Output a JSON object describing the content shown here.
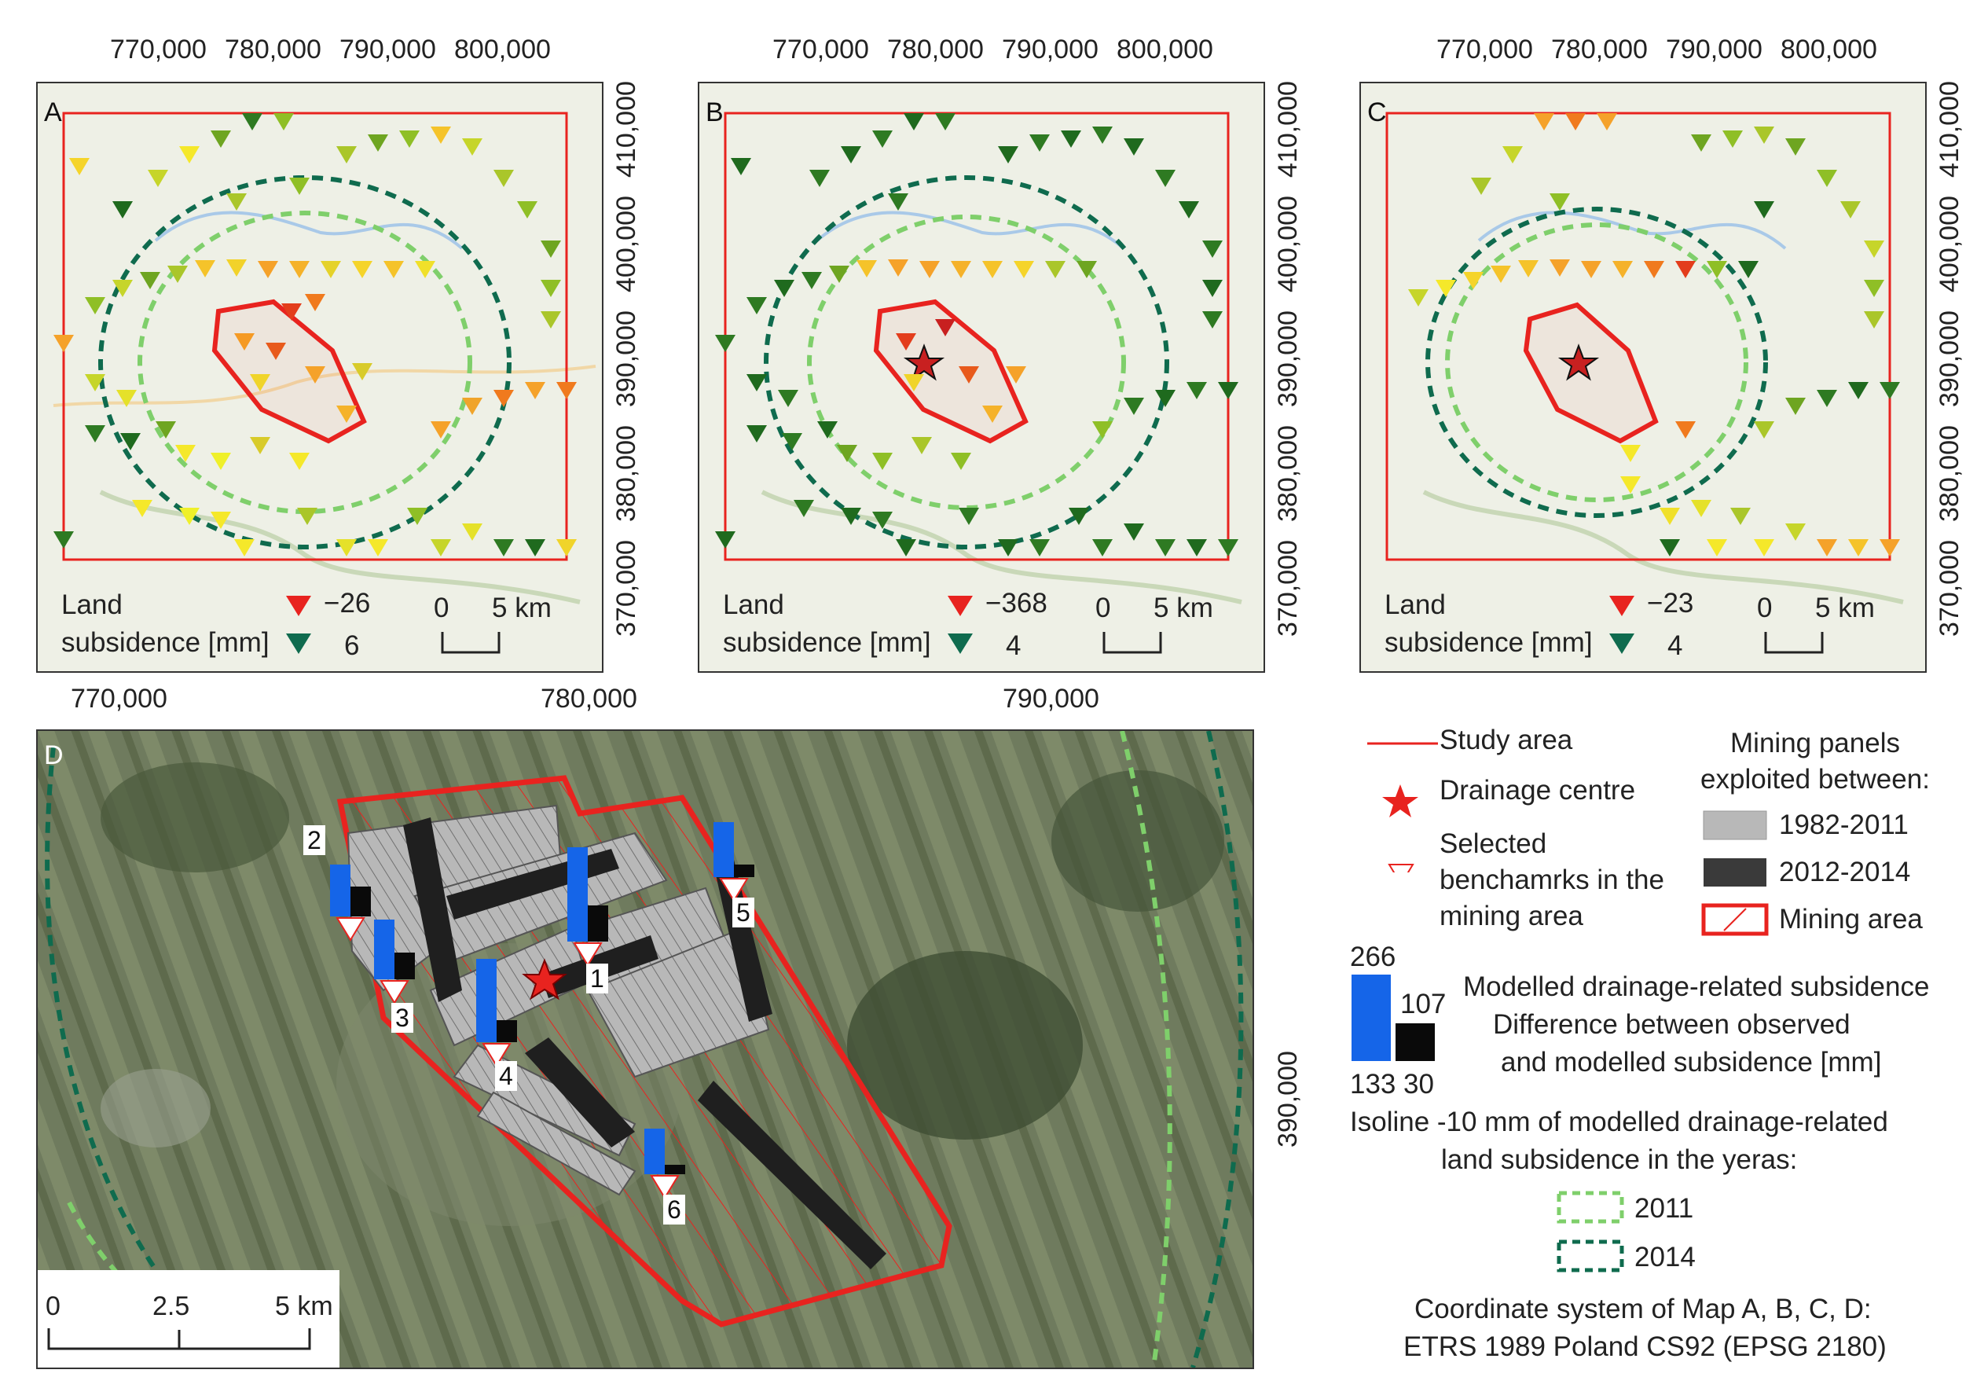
{
  "top_maps": {
    "x_ticks": [
      "770,000",
      "780,000",
      "790,000",
      "800,000"
    ],
    "y_ticks": [
      "410,000",
      "400,000",
      "390,000",
      "380,000",
      "370,000"
    ],
    "panels": [
      {
        "label": "A",
        "legend_title_1": "Land",
        "legend_title_2": "subsidence [mm]",
        "min_value": "−26",
        "max_value": "6",
        "scale_0": "0",
        "scale_5": "5 km"
      },
      {
        "label": "B",
        "legend_title_1": "Land",
        "legend_title_2": "subsidence [mm]",
        "min_value": "−368",
        "max_value": "4",
        "scale_0": "0",
        "scale_5": "5 km"
      },
      {
        "label": "C",
        "legend_title_1": "Land",
        "legend_title_2": "subsidence [mm]",
        "min_value": "−23",
        "max_value": "4",
        "scale_0": "0",
        "scale_5": "5 km"
      }
    ]
  },
  "map_d": {
    "label": "D",
    "x_ticks": [
      "770,000",
      "780,000",
      "790,000"
    ],
    "y_tick": "390,000",
    "benchmarks": [
      "1",
      "2",
      "3",
      "4",
      "5",
      "6"
    ],
    "scale": {
      "t0": "0",
      "t1": "2.5",
      "t2": "5 km"
    }
  },
  "legend": {
    "study_area": "Study area",
    "drainage_centre": "Drainage centre",
    "selected_1": "Selected",
    "selected_2": "benchamrks in the",
    "selected_3": "mining area",
    "panels_title_1": "Mining panels",
    "panels_title_2": "exploited between:",
    "period_1": "1982-2011",
    "period_2": "2012-2014",
    "mining_area": "Mining area",
    "bar_blue_max": "266",
    "bar_blue_min": "133",
    "bar_black_max": "107",
    "bar_black_min": "30",
    "modelled_1": "Modelled drainage-related subsidence",
    "modelled_2": "Difference between observed",
    "modelled_3": "and modelled subsidence [mm]",
    "isoline_1": "Isoline -10 mm of modelled drainage-related",
    "isoline_2": "land subsidence in the yeras:",
    "year_1": "2011",
    "year_2": "2014",
    "crs_1": "Coordinate system of Map A, B, C, D:",
    "crs_2": "ETRS 1989 Poland CS92 (EPSG 2180)"
  },
  "colors": {
    "study_area": "#e8231f",
    "isoline_2011": "#7fcf6b",
    "isoline_2014": "#0f6b4e",
    "bar_modelled": "#1565e8",
    "bar_difference": "#0a0a0a",
    "panels_old": "#b8b8b8",
    "panels_new": "#3a3a3a"
  }
}
